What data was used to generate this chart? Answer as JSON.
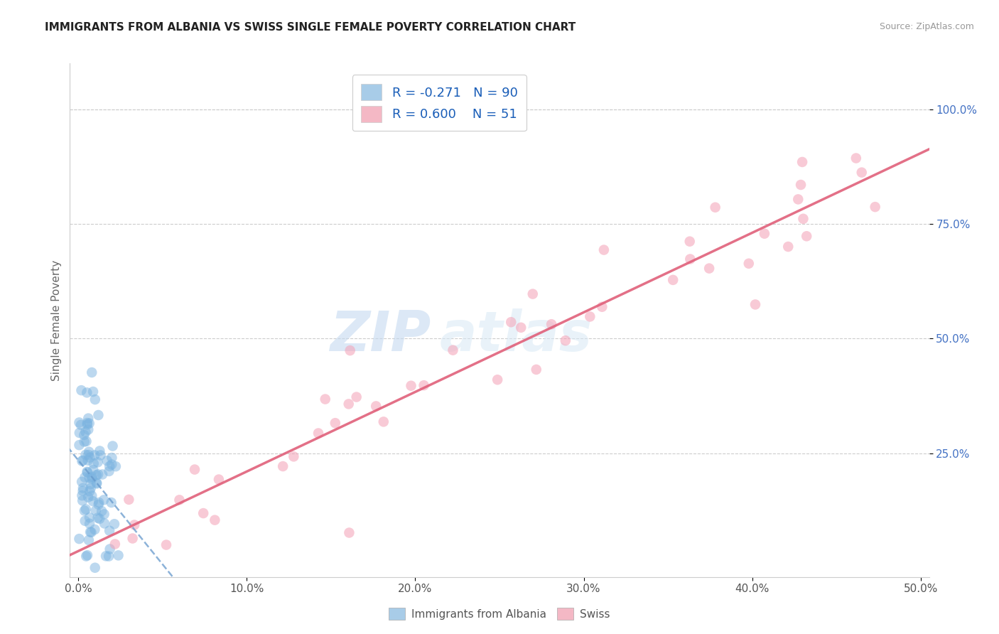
{
  "title": "IMMIGRANTS FROM ALBANIA VS SWISS SINGLE FEMALE POVERTY CORRELATION CHART",
  "source": "Source: ZipAtlas.com",
  "ylabel": "Single Female Poverty",
  "x_tick_labels": [
    "0.0%",
    "10.0%",
    "20.0%",
    "30.0%",
    "40.0%",
    "50.0%"
  ],
  "x_tick_values": [
    0.0,
    0.1,
    0.2,
    0.3,
    0.4,
    0.5
  ],
  "y_tick_labels": [
    "100.0%",
    "75.0%",
    "50.0%",
    "25.0%"
  ],
  "y_tick_values": [
    1.0,
    0.75,
    0.5,
    0.25
  ],
  "xlim": [
    -0.005,
    0.505
  ],
  "ylim": [
    -0.02,
    1.1
  ],
  "albania_R": -0.271,
  "albania_N": 90,
  "swiss_R": 0.6,
  "swiss_N": 51,
  "albania_color": "#7ab3e0",
  "swiss_color": "#f4a0b5",
  "albania_line_color": "#6699cc",
  "swiss_line_color": "#e0607a",
  "watermark_zip": "ZIP",
  "watermark_atlas": "atlas",
  "background_color": "#ffffff",
  "grid_color": "#cccccc",
  "right_tick_color": "#4472c4",
  "legend_label_color": "#1a5eb8",
  "bottom_legend_color": "#555555"
}
